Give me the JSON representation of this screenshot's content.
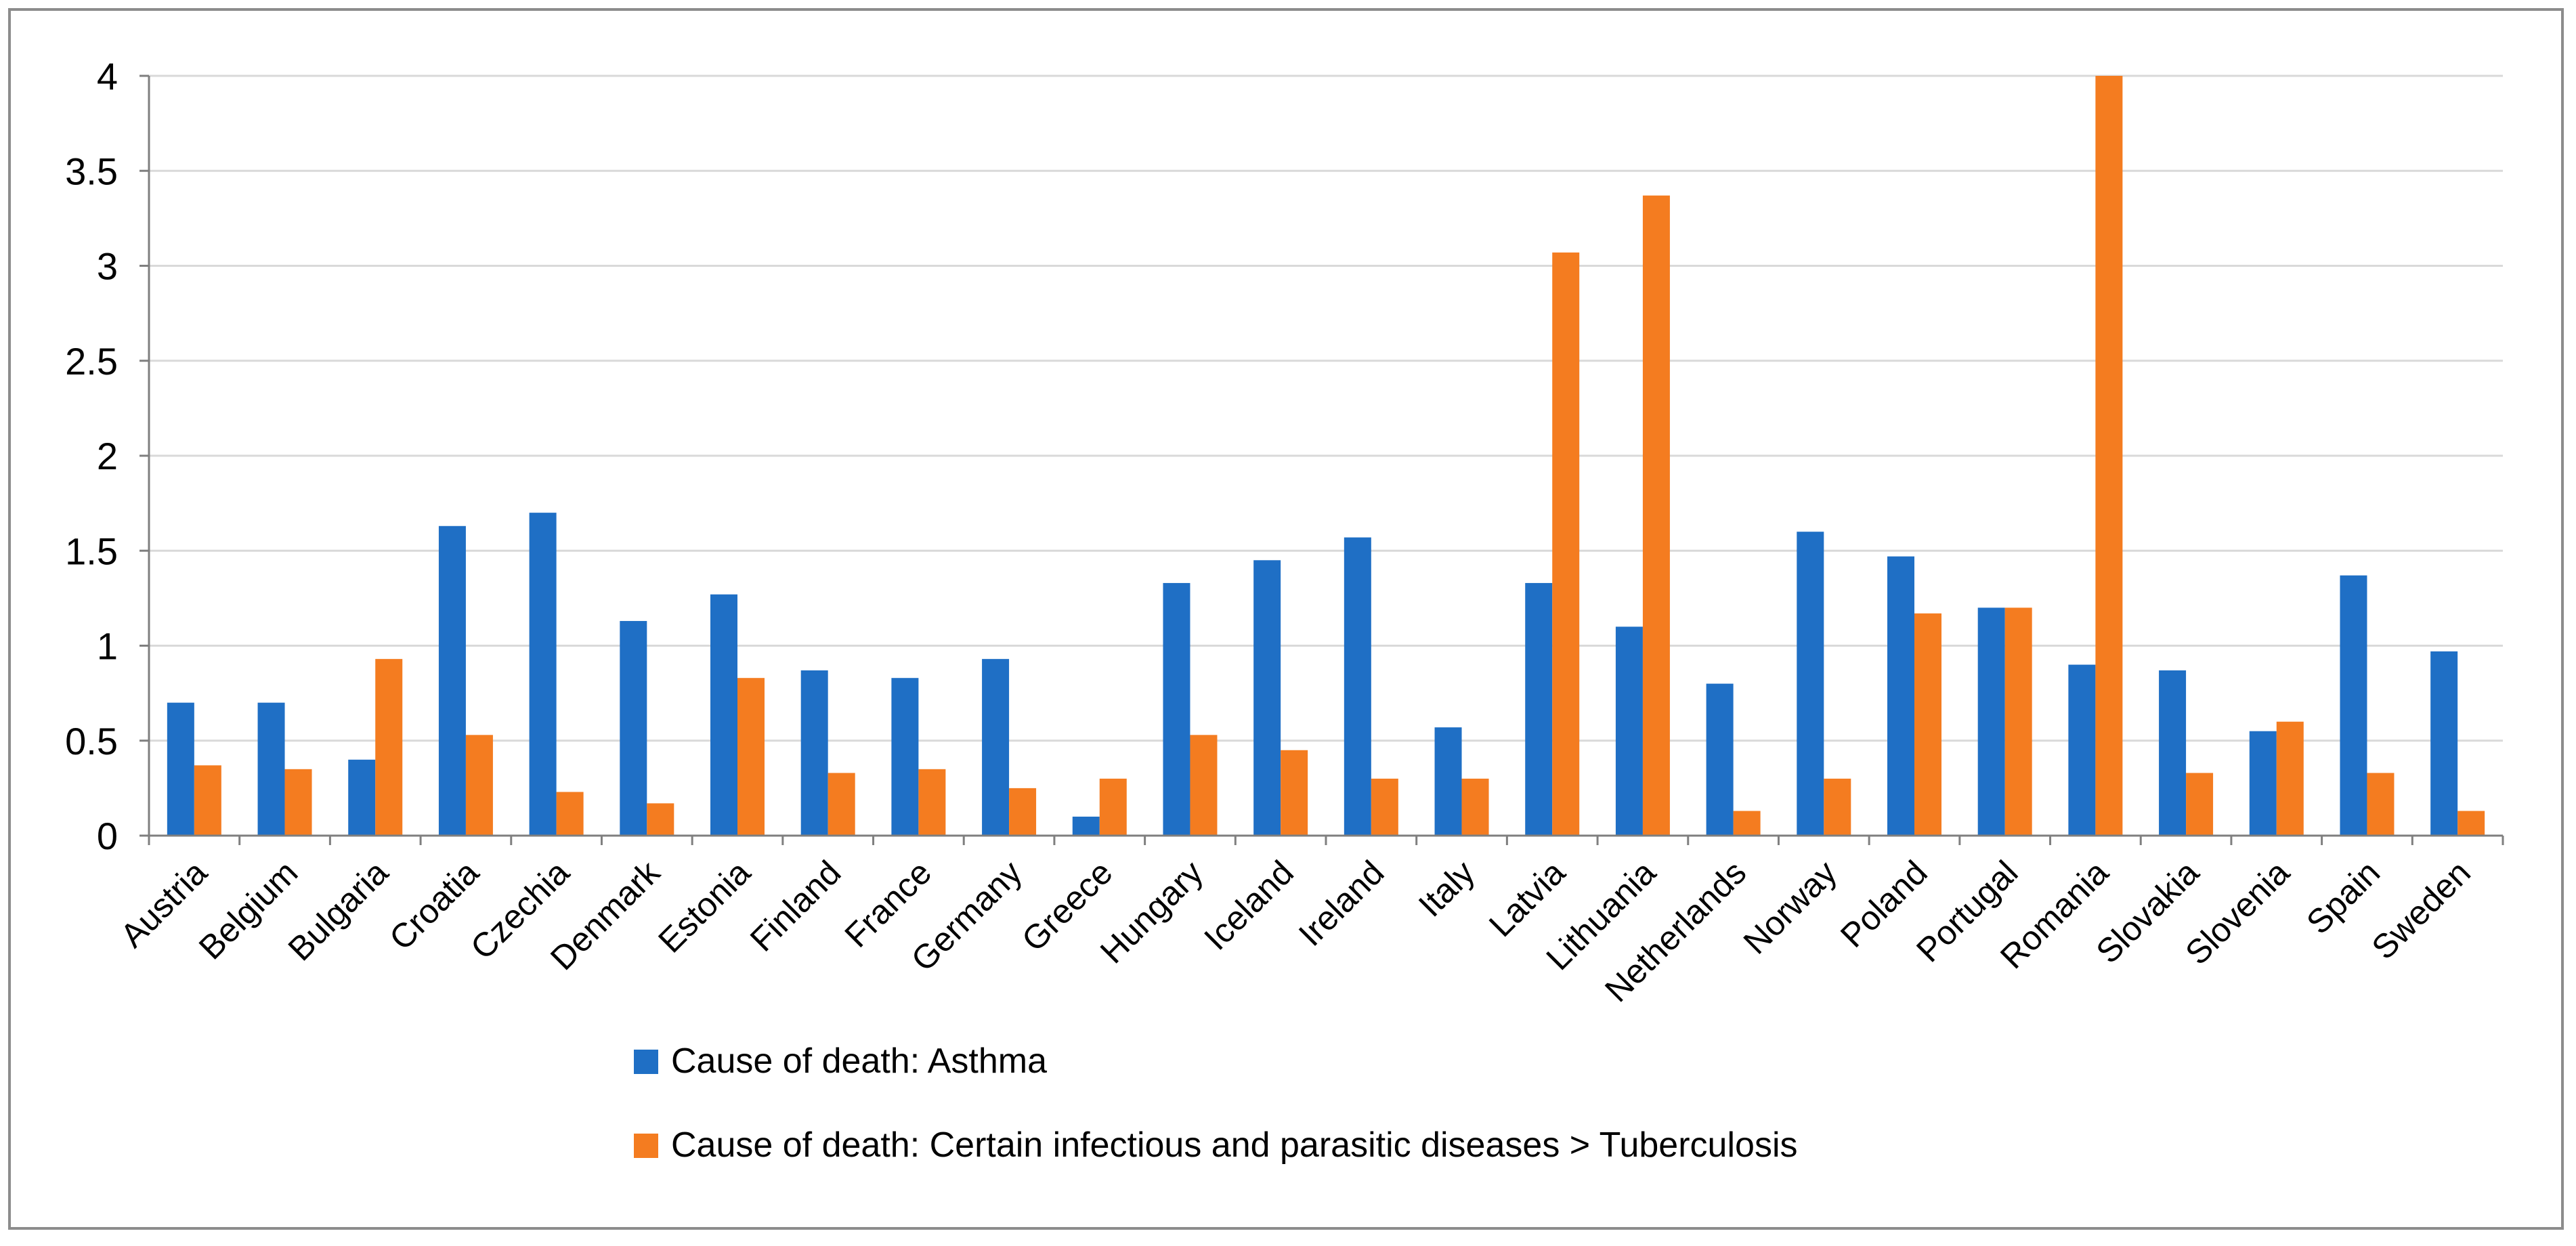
{
  "chart_data": {
    "type": "bar",
    "title": "",
    "xlabel": "",
    "ylabel": "",
    "ylim": [
      0,
      4
    ],
    "yticks": [
      "0",
      "0.5",
      "1",
      "1.5",
      "2",
      "2.5",
      "3",
      "3.5",
      "4"
    ],
    "grid": true,
    "legend_position": "bottom",
    "categories": [
      "Austria",
      "Belgium",
      "Bulgaria",
      "Croatia",
      "Czechia",
      "Denmark",
      "Estonia",
      "Finland",
      "France",
      "Germany",
      "Greece",
      "Hungary",
      "Iceland",
      "Ireland",
      "Italy",
      "Latvia",
      "Lithuania",
      "Netherlands",
      "Norway",
      "Poland",
      "Portugal",
      "Romania",
      "Slovakia",
      "Slovenia",
      "Spain",
      "Sweden"
    ],
    "series": [
      {
        "name": "Cause of death: Asthma",
        "color": "#1f6fc5",
        "values": [
          0.7,
          0.7,
          0.4,
          1.63,
          1.7,
          1.13,
          1.27,
          0.87,
          0.83,
          0.93,
          0.1,
          1.33,
          1.45,
          1.57,
          0.57,
          1.33,
          1.1,
          0.8,
          1.6,
          1.47,
          1.2,
          0.9,
          0.87,
          0.55,
          1.37,
          0.97
        ]
      },
      {
        "name": "Cause of death: Certain infectious and parasitic diseases > Tuberculosis",
        "color": "#f47c20",
        "values": [
          0.37,
          0.35,
          0.93,
          0.53,
          0.23,
          0.17,
          0.83,
          0.33,
          0.35,
          0.25,
          0.3,
          0.53,
          0.45,
          0.3,
          0.3,
          3.07,
          3.37,
          0.13,
          0.3,
          1.17,
          1.2,
          4.0,
          0.33,
          0.6,
          0.33,
          0.13
        ]
      }
    ]
  }
}
